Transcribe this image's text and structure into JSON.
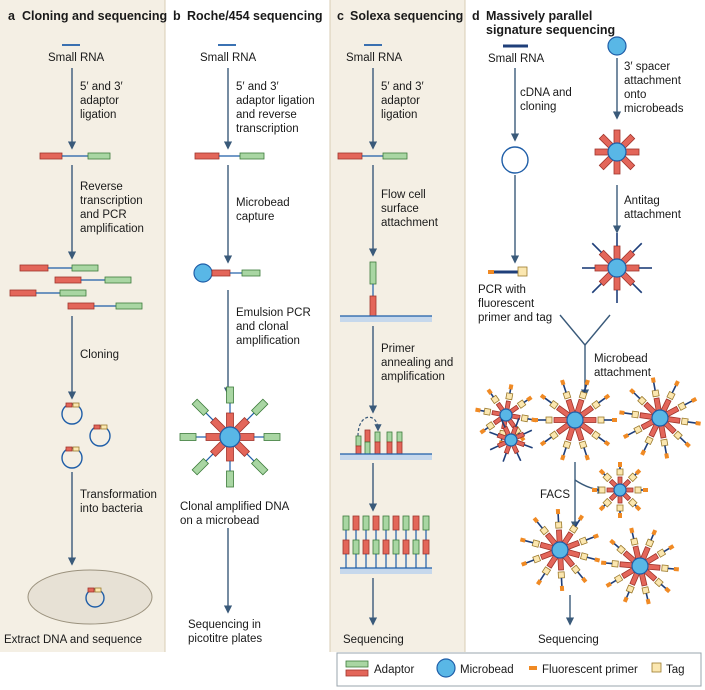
{
  "panels": {
    "a": {
      "letter": "a",
      "title": "Cloning and sequencing",
      "small_rna": "Small RNA",
      "step1": [
        "5′ and 3′",
        "adaptor",
        "ligation"
      ],
      "step2": [
        "Reverse",
        "transcription",
        "and PCR",
        "amplification"
      ],
      "step3": "Cloning",
      "step4": [
        "Transformation",
        "into bacteria"
      ],
      "final": "Extract DNA and sequence"
    },
    "b": {
      "letter": "b",
      "title": "Roche/454 sequencing",
      "small_rna": "Small RNA",
      "step1": [
        "5′ and 3′",
        "adaptor ligation",
        "and reverse",
        "transcription"
      ],
      "step2": [
        "Microbead",
        "capture"
      ],
      "step3": [
        "Emulsion PCR",
        "and clonal",
        "amplification"
      ],
      "step4": [
        "Clonal amplified DNA",
        "on a microbead"
      ],
      "final": [
        "Sequencing in",
        "picotitre plates"
      ]
    },
    "c": {
      "letter": "c",
      "title": "Solexa sequencing",
      "small_rna": "Small RNA",
      "step1": [
        "5′ and 3′",
        "adaptor",
        "ligation"
      ],
      "step2": [
        "Flow cell",
        "surface",
        "attachment"
      ],
      "step3": [
        "Primer",
        "annealing and",
        "amplification"
      ],
      "final": "Sequencing"
    },
    "d": {
      "letter": "d",
      "title": [
        "Massively parallel",
        "signature sequencing"
      ],
      "small_rna": "Small RNA",
      "step_cdna": [
        "cDNA and",
        "cloning"
      ],
      "step_pcr": [
        "PCR with",
        "fluorescent",
        "primer and tag"
      ],
      "step_spacer": [
        "3′ spacer",
        "attachment",
        "onto",
        "microbeads"
      ],
      "step_antitag": [
        "Antitag",
        "attachment"
      ],
      "step_microbead": [
        "Microbead",
        "attachment"
      ],
      "facs": "FACS",
      "final": "Sequencing"
    }
  },
  "legend": {
    "adaptor": "Adaptor",
    "microbead": "Microbead",
    "fluorescent_primer": "Fluorescent primer",
    "tag": "Tag"
  },
  "colors": {
    "adaptor_green": "#a9d6a3",
    "adaptor_red": "#e3665a",
    "microbead": "#59b7e6",
    "fluorescent_primer": "#f08a24",
    "tag": "#fbe7b0",
    "panel_tint": "#f4efe4"
  }
}
